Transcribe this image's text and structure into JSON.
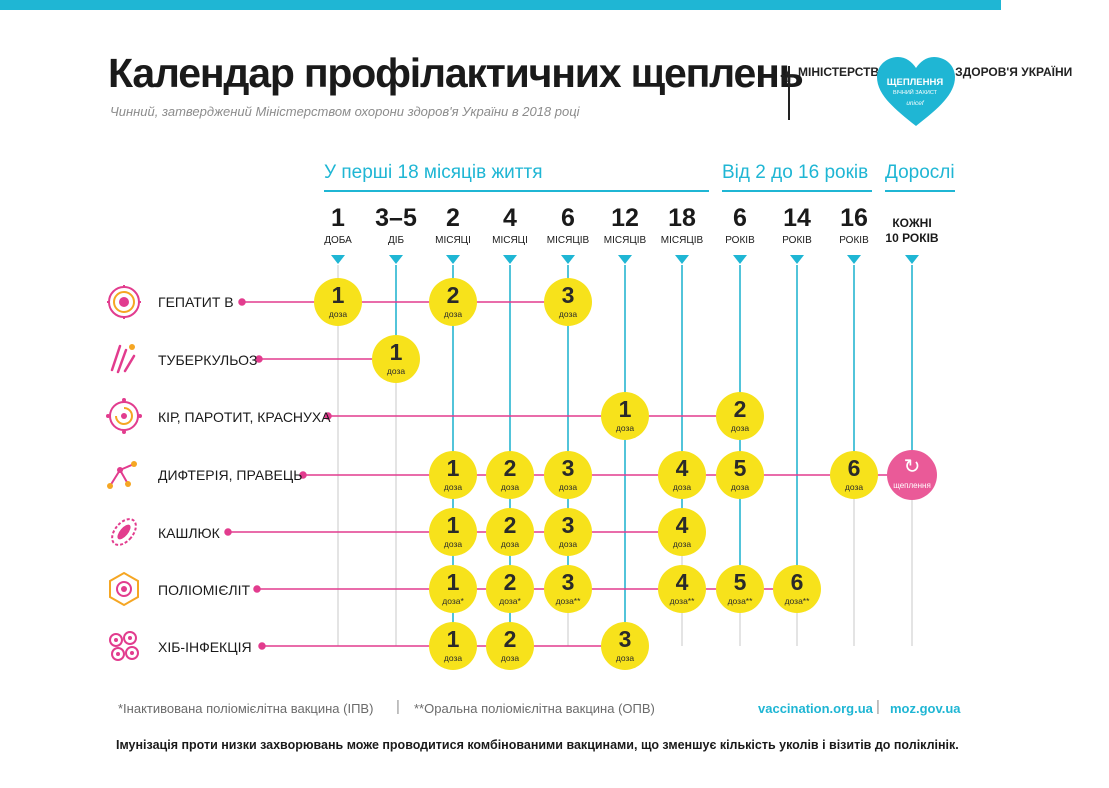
{
  "header": {
    "title": "Календар профілактичних щеплень",
    "subtitle": "Чинний, затверджений Міністерством охорони здоров'я України в 2018 році",
    "ministry": "МІНІСТЕРСТВО ОХОРОНИ ЗДОРОВ'Я УКРАЇНИ",
    "campaign_title": "ЩЕПЛЕННЯ",
    "campaign_subtitle": "ВІЧНИЙ ЗАХИСТ",
    "campaign_partner": "unicef"
  },
  "groups": {
    "first18": "У перші 18 місяців життя",
    "from2to16": "Від 2 до 16 років",
    "adults": "Дорослі"
  },
  "columns": [
    {
      "num": "1",
      "unit": "ДОБА"
    },
    {
      "num": "3–5",
      "unit": "ДІБ"
    },
    {
      "num": "2",
      "unit": "МІСЯЦІ"
    },
    {
      "num": "4",
      "unit": "МІСЯЦІ"
    },
    {
      "num": "6",
      "unit": "МІСЯЦІВ"
    },
    {
      "num": "12",
      "unit": "МІСЯЦІВ"
    },
    {
      "num": "18",
      "unit": "МІСЯЦІВ"
    },
    {
      "num": "6",
      "unit": "РОКІВ"
    },
    {
      "num": "14",
      "unit": "РОКІВ"
    },
    {
      "num": "16",
      "unit": "РОКІВ"
    },
    {
      "num": "КОЖНІ",
      "unit": "10 РОКІВ"
    }
  ],
  "dose_unit": "доза",
  "booster_label": "щеплення",
  "rows": [
    {
      "label": "ГЕПАТИТ В",
      "icon": "hepatitis-b-virus-icon"
    },
    {
      "label": "ТУБЕРКУЛЬОЗ",
      "icon": "tuberculosis-bacteria-icon"
    },
    {
      "label": "КІР, ПАРОТИТ, КРАСНУХА",
      "icon": "measles-virus-icon"
    },
    {
      "label": "ДИФТЕРІЯ, ПРАВЕЦЬ",
      "icon": "diphtheria-bacteria-icon"
    },
    {
      "label": "КАШЛЮК",
      "icon": "pertussis-bacteria-icon"
    },
    {
      "label": "ПОЛІОМІЄЛІТ",
      "icon": "polio-virus-icon"
    },
    {
      "label": "ХІБ-ІНФЕКЦІЯ",
      "icon": "hib-bacteria-icon"
    }
  ],
  "doses": {
    "hepb": [
      "1",
      "2",
      "3"
    ],
    "tb": [
      "1"
    ],
    "mmr": [
      "1",
      "2"
    ],
    "dt": [
      "1",
      "2",
      "3",
      "4",
      "5",
      "6"
    ],
    "pert": [
      "1",
      "2",
      "3",
      "4"
    ],
    "polio": [
      "1",
      "2",
      "3",
      "4",
      "5",
      "6"
    ],
    "polio_units": [
      "доза*",
      "доза*",
      "доза**",
      "доза**",
      "доза**",
      "доза**"
    ],
    "hib": [
      "1",
      "2",
      "3"
    ]
  },
  "footer": {
    "note_ipv": "*Інактивована поліомієлітна вакцина (ІПВ)",
    "note_opv": "**Оральна поліомієлітна вакцина (ОПВ)",
    "link1": "vaccination.org.ua",
    "link2": "moz.gov.ua",
    "separator": "|",
    "bottom": "Імунізація проти низки захворювань може проводитися комбінованими вакцинами, що зменшує кількість уколів і візитів до поліклінік."
  },
  "colors": {
    "accent_blue": "#1fb6d4",
    "accent_pink": "#e23c8e",
    "dose_yellow": "#f7e21b",
    "booster_pink": "#ea5a98",
    "grid_grey": "#dcdcdc"
  }
}
